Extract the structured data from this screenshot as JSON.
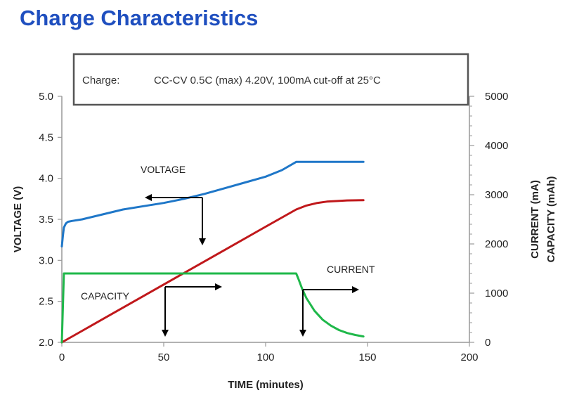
{
  "title": "Charge Characteristics",
  "note": {
    "label": "Charge:",
    "text": "CC-CV 0.5C (max) 4.20V, 100mA cut-off at 25°C"
  },
  "colors": {
    "title": "#1f4fbf",
    "voltage": "#1f77c8",
    "capacity": "#c0181b",
    "current": "#1fb84a",
    "axis": "#999999",
    "arrow": "#000000"
  },
  "chart_data": {
    "type": "line",
    "title": "Charge Characteristics",
    "xlabel": "TIME (minutes)",
    "ylabel_left": "VOLTAGE (V)",
    "ylabel_right_1": "CURRENT (mA)",
    "ylabel_right_2": "CAPACITY (mAh)",
    "xlim": [
      0,
      200
    ],
    "ylim_left": [
      2.0,
      5.0
    ],
    "ylim_right": [
      0,
      5000
    ],
    "x_ticks": [
      "0",
      "50",
      "100",
      "150",
      "200"
    ],
    "y_left_ticks": [
      "2.0",
      "2.5",
      "3.0",
      "3.5",
      "4.0",
      "4.5",
      "5.0"
    ],
    "y_right_ticks": [
      "0",
      "1000",
      "2000",
      "3000",
      "4000",
      "5000"
    ],
    "grid": false,
    "series": [
      {
        "name": "VOLTAGE",
        "axis": "left",
        "points": [
          [
            0,
            3.17
          ],
          [
            0.5,
            3.3
          ],
          [
            1,
            3.4
          ],
          [
            2,
            3.45
          ],
          [
            3,
            3.47
          ],
          [
            5,
            3.48
          ],
          [
            10,
            3.5
          ],
          [
            20,
            3.56
          ],
          [
            30,
            3.62
          ],
          [
            40,
            3.66
          ],
          [
            50,
            3.7
          ],
          [
            60,
            3.75
          ],
          [
            70,
            3.81
          ],
          [
            80,
            3.88
          ],
          [
            90,
            3.95
          ],
          [
            100,
            4.02
          ],
          [
            108,
            4.1
          ],
          [
            115,
            4.2
          ],
          [
            120,
            4.2
          ],
          [
            130,
            4.2
          ],
          [
            140,
            4.2
          ],
          [
            148,
            4.2
          ]
        ]
      },
      {
        "name": "CAPACITY",
        "axis": "right",
        "points": [
          [
            0,
            0
          ],
          [
            20,
            470
          ],
          [
            40,
            940
          ],
          [
            60,
            1410
          ],
          [
            80,
            1880
          ],
          [
            100,
            2350
          ],
          [
            115,
            2700
          ],
          [
            120,
            2780
          ],
          [
            125,
            2830
          ],
          [
            130,
            2860
          ],
          [
            140,
            2885
          ],
          [
            148,
            2890
          ]
        ]
      },
      {
        "name": "CURRENT",
        "axis": "right",
        "points": [
          [
            0,
            0
          ],
          [
            1,
            1400
          ],
          [
            40,
            1400
          ],
          [
            80,
            1400
          ],
          [
            115,
            1400
          ],
          [
            116,
            1300
          ],
          [
            118,
            1080
          ],
          [
            120,
            900
          ],
          [
            124,
            640
          ],
          [
            128,
            460
          ],
          [
            132,
            340
          ],
          [
            136,
            250
          ],
          [
            140,
            190
          ],
          [
            144,
            150
          ],
          [
            148,
            120
          ]
        ]
      }
    ],
    "annotations": [
      "VOLTAGE",
      "CAPACITY",
      "CURRENT"
    ]
  }
}
